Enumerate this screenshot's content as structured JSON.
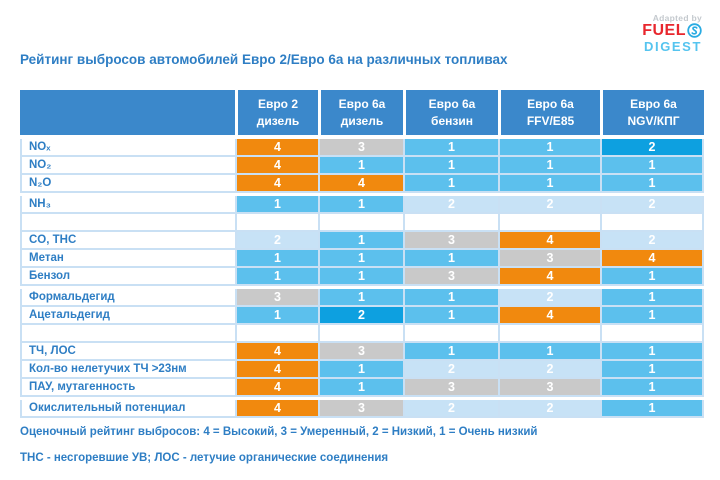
{
  "logo": {
    "adapted_by": "Adapted by",
    "brand_top": "FUEL",
    "brand_top_suffix": "S",
    "brand_bottom": "DIGEST"
  },
  "title": "Рейтинг выбросов автомобилей Евро 2/Евро 6а на различных топливах",
  "colors": {
    "header_blue": "#3b88cb",
    "text_blue": "#2e7ec4",
    "grid_light_blue": "#c9e0f4",
    "logo_red": "#e8262d",
    "logo_light_blue": "#55c4ef",
    "rating_colors": {
      "r1": "#5cc0ed",
      "r2_pale": "#c7e2f6",
      "r2_strong": "#0da0e0",
      "r3": "#c9c9c9",
      "r4": "#f1890e",
      "none": "#ffffff"
    }
  },
  "table": {
    "columns": [
      {
        "line1": "Евро 2",
        "line2": "дизель"
      },
      {
        "line1": "Евро 6а",
        "line2": "дизель"
      },
      {
        "line1": "Евро 6а",
        "line2": "бензин"
      },
      {
        "line1": "Евро 6а",
        "line2": "FFV/E85"
      },
      {
        "line1": "Евро 6а",
        "line2": "NGV/КПГ"
      }
    ],
    "rows": [
      {
        "label": "NOₓ",
        "cells": [
          {
            "v": "4",
            "tone": "r4"
          },
          {
            "v": "3",
            "tone": "r3"
          },
          {
            "v": "1",
            "tone": "r1"
          },
          {
            "v": "1",
            "tone": "r1"
          },
          {
            "v": "2",
            "tone": "r2_strong"
          }
        ]
      },
      {
        "label": "NO₂",
        "cells": [
          {
            "v": "4",
            "tone": "r4"
          },
          {
            "v": "1",
            "tone": "r1"
          },
          {
            "v": "1",
            "tone": "r1"
          },
          {
            "v": "1",
            "tone": "r1"
          },
          {
            "v": "1",
            "tone": "r1"
          }
        ]
      },
      {
        "label": "N₂O",
        "cells": [
          {
            "v": "4",
            "tone": "r4"
          },
          {
            "v": "4",
            "tone": "r4"
          },
          {
            "v": "1",
            "tone": "r1"
          },
          {
            "v": "1",
            "tone": "r1"
          },
          {
            "v": "1",
            "tone": "r1"
          }
        ]
      },
      {
        "label": "NH₃",
        "gap_above": true,
        "cells": [
          {
            "v": "1",
            "tone": "r1"
          },
          {
            "v": "1",
            "tone": "r1"
          },
          {
            "v": "2",
            "tone": "r2_pale"
          },
          {
            "v": "2",
            "tone": "r2_pale"
          },
          {
            "v": "2",
            "tone": "r2_pale"
          }
        ]
      },
      {
        "spacer": true
      },
      {
        "label": "CO, THC",
        "cells": [
          {
            "v": "2",
            "tone": "r2_pale"
          },
          {
            "v": "1",
            "tone": "r1"
          },
          {
            "v": "3",
            "tone": "r3"
          },
          {
            "v": "4",
            "tone": "r4"
          },
          {
            "v": "2",
            "tone": "r2_pale"
          }
        ]
      },
      {
        "label": "Метан",
        "cells": [
          {
            "v": "1",
            "tone": "r1"
          },
          {
            "v": "1",
            "tone": "r1"
          },
          {
            "v": "1",
            "tone": "r1"
          },
          {
            "v": "3",
            "tone": "r3"
          },
          {
            "v": "4",
            "tone": "r4"
          }
        ]
      },
      {
        "label": "Бензол",
        "cells": [
          {
            "v": "1",
            "tone": "r1"
          },
          {
            "v": "1",
            "tone": "r1"
          },
          {
            "v": "3",
            "tone": "r3"
          },
          {
            "v": "4",
            "tone": "r4"
          },
          {
            "v": "1",
            "tone": "r1"
          }
        ]
      },
      {
        "label": "Формальдегид",
        "gap_above": true,
        "cells": [
          {
            "v": "3",
            "tone": "r3"
          },
          {
            "v": "1",
            "tone": "r1"
          },
          {
            "v": "1",
            "tone": "r1"
          },
          {
            "v": "2",
            "tone": "r2_pale"
          },
          {
            "v": "1",
            "tone": "r1"
          }
        ]
      },
      {
        "label": "Ацетальдегид",
        "cells": [
          {
            "v": "1",
            "tone": "r1"
          },
          {
            "v": "2",
            "tone": "r2_strong"
          },
          {
            "v": "1",
            "tone": "r1"
          },
          {
            "v": "4",
            "tone": "r4"
          },
          {
            "v": "1",
            "tone": "r1"
          }
        ]
      },
      {
        "spacer": true
      },
      {
        "label": "ТЧ, ЛОС",
        "cells": [
          {
            "v": "4",
            "tone": "r4"
          },
          {
            "v": "3",
            "tone": "r3"
          },
          {
            "v": "1",
            "tone": "r1"
          },
          {
            "v": "1",
            "tone": "r1"
          },
          {
            "v": "1",
            "tone": "r1"
          }
        ]
      },
      {
        "label": "Кол-во нелетучих ТЧ >23нм",
        "cells": [
          {
            "v": "4",
            "tone": "r4"
          },
          {
            "v": "1",
            "tone": "r1"
          },
          {
            "v": "2",
            "tone": "r2_pale"
          },
          {
            "v": "2",
            "tone": "r2_pale"
          },
          {
            "v": "1",
            "tone": "r1"
          }
        ]
      },
      {
        "label": "ПАУ, мутагенность",
        "cells": [
          {
            "v": "4",
            "tone": "r4"
          },
          {
            "v": "1",
            "tone": "r1"
          },
          {
            "v": "3",
            "tone": "r3"
          },
          {
            "v": "3",
            "tone": "r3"
          },
          {
            "v": "1",
            "tone": "r1"
          }
        ]
      },
      {
        "label": "Окислительный потенциал",
        "gap_above": true,
        "cells": [
          {
            "v": "4",
            "tone": "r4"
          },
          {
            "v": "3",
            "tone": "r3"
          },
          {
            "v": "2",
            "tone": "r2_pale"
          },
          {
            "v": "2",
            "tone": "r2_pale"
          },
          {
            "v": "1",
            "tone": "r1"
          }
        ]
      }
    ]
  },
  "legend": "Оценочный рейтинг выбросов: 4 = Высокий, 3 = Умеренный, 2 = Низкий, 1 = Очень низкий",
  "footnote": "ТНС - несгоревшие УВ; ЛОС - летучие органические соединения",
  "chart_data": {
    "type": "table",
    "title": "Рейтинг выбросов автомобилей Евро 2/Евро 6а на различных топливах",
    "columns": [
      "Евро 2 дизель",
      "Евро 6а дизель",
      "Евро 6а бензин",
      "Евро 6а FFV/E85",
      "Евро 6а NGV/КПГ"
    ],
    "rows": [
      {
        "label": "NOₓ",
        "values": [
          4,
          3,
          1,
          1,
          2
        ]
      },
      {
        "label": "NO₂",
        "values": [
          4,
          1,
          1,
          1,
          1
        ]
      },
      {
        "label": "N₂O",
        "values": [
          4,
          4,
          1,
          1,
          1
        ]
      },
      {
        "label": "NH₃",
        "values": [
          1,
          1,
          2,
          2,
          2
        ]
      },
      {
        "label": "CO, THC",
        "values": [
          2,
          1,
          3,
          4,
          2
        ]
      },
      {
        "label": "Метан",
        "values": [
          1,
          1,
          1,
          3,
          4
        ]
      },
      {
        "label": "Бензол",
        "values": [
          1,
          1,
          3,
          4,
          1
        ]
      },
      {
        "label": "Формальдегид",
        "values": [
          3,
          1,
          1,
          2,
          1
        ]
      },
      {
        "label": "Ацетальдегид",
        "values": [
          1,
          2,
          1,
          4,
          1
        ]
      },
      {
        "label": "ТЧ, ЛОС",
        "values": [
          4,
          3,
          1,
          1,
          1
        ]
      },
      {
        "label": "Кол-во нелетучих ТЧ >23нм",
        "values": [
          4,
          1,
          2,
          2,
          1
        ]
      },
      {
        "label": "ПАУ, мутагенность",
        "values": [
          4,
          1,
          3,
          3,
          1
        ]
      },
      {
        "label": "Окислительный потенциал",
        "values": [
          4,
          3,
          2,
          2,
          1
        ]
      }
    ],
    "rating_scale": {
      "4": "Высокий",
      "3": "Умеренный",
      "2": "Низкий",
      "1": "Очень низкий"
    }
  }
}
